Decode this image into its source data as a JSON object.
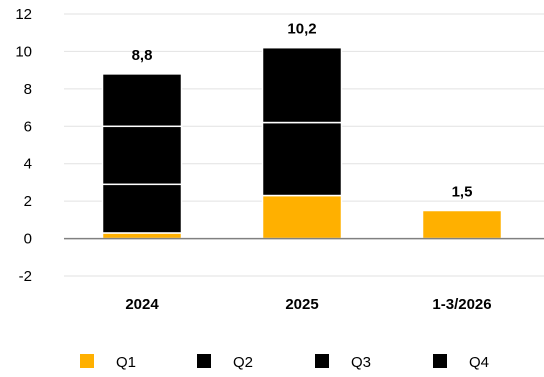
{
  "chart_data": {
    "type": "bar",
    "stacked": true,
    "categories": [
      "2024",
      "2025",
      "1-3/2026"
    ],
    "series": [
      {
        "name": "Q1",
        "values": [
          0.3,
          2.3,
          1.5
        ],
        "color": "#FFB000"
      },
      {
        "name": "Q2",
        "values": [
          2.6,
          3.9,
          0
        ],
        "color": "#000000"
      },
      {
        "name": "Q3",
        "values": [
          3.1,
          4.0,
          0
        ],
        "color": "#000000"
      },
      {
        "name": "Q4",
        "values": [
          2.8,
          0,
          0
        ],
        "color": "#000000"
      }
    ],
    "totals": [
      "8,8",
      "10,2",
      "1,5"
    ],
    "ylim": [
      -2,
      12
    ],
    "yticks": [
      "-2",
      "0",
      "2",
      "4",
      "6",
      "8",
      "10",
      "12"
    ],
    "grid": true,
    "legend_position": "bottom",
    "title": "",
    "xlabel": "",
    "ylabel": ""
  }
}
